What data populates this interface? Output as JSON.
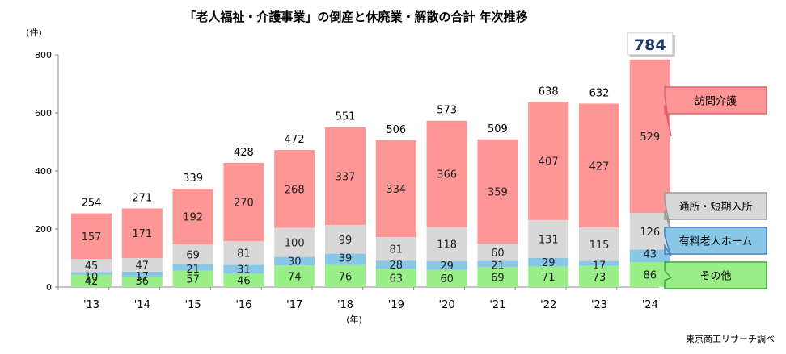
{
  "chart_data": {
    "type": "bar",
    "stacked": true,
    "title": "「老人福祉・介護事業」の倒産と休廃業・解散の合計 年次推移",
    "ylabel": "(件)",
    "xlabel": "(年)",
    "source": "東京商工リサーチ調べ",
    "ylim": [
      0,
      800
    ],
    "yticks": [
      0,
      200,
      400,
      600,
      800
    ],
    "grid": false,
    "legend": "callouts-right",
    "categories": [
      "'13",
      "'14",
      "'15",
      "'16",
      "'17",
      "'18",
      "'19",
      "'20",
      "'21",
      "'22",
      "'23",
      "'24"
    ],
    "series": [
      {
        "name": "その他",
        "color": "#99ee88",
        "values": [
          42,
          36,
          57,
          46,
          74,
          76,
          63,
          60,
          69,
          71,
          73,
          86
        ]
      },
      {
        "name": "有料老人ホーム",
        "color": "#88c8e6",
        "values": [
          10,
          17,
          21,
          31,
          30,
          39,
          28,
          29,
          21,
          29,
          17,
          43
        ]
      },
      {
        "name": "通所・短期入所",
        "color": "#d8d8d8",
        "values": [
          45,
          47,
          69,
          81,
          100,
          99,
          81,
          118,
          60,
          131,
          115,
          126
        ]
      },
      {
        "name": "訪問介護",
        "color": "#ff9696",
        "values": [
          157,
          171,
          192,
          270,
          268,
          337,
          334,
          366,
          359,
          407,
          427,
          529
        ]
      }
    ],
    "totals": [
      254,
      271,
      339,
      428,
      472,
      551,
      506,
      573,
      509,
      638,
      632,
      784
    ]
  },
  "callouts": [
    {
      "series": 3,
      "label": "訪問介護",
      "border": "#e06070"
    },
    {
      "series": 2,
      "label": "通所・短期入所",
      "border": "#999999"
    },
    {
      "series": 1,
      "label": "有料老人ホーム",
      "border": "#4a7fc0"
    },
    {
      "series": 0,
      "label": "その他",
      "border": "#3aa83a"
    }
  ]
}
